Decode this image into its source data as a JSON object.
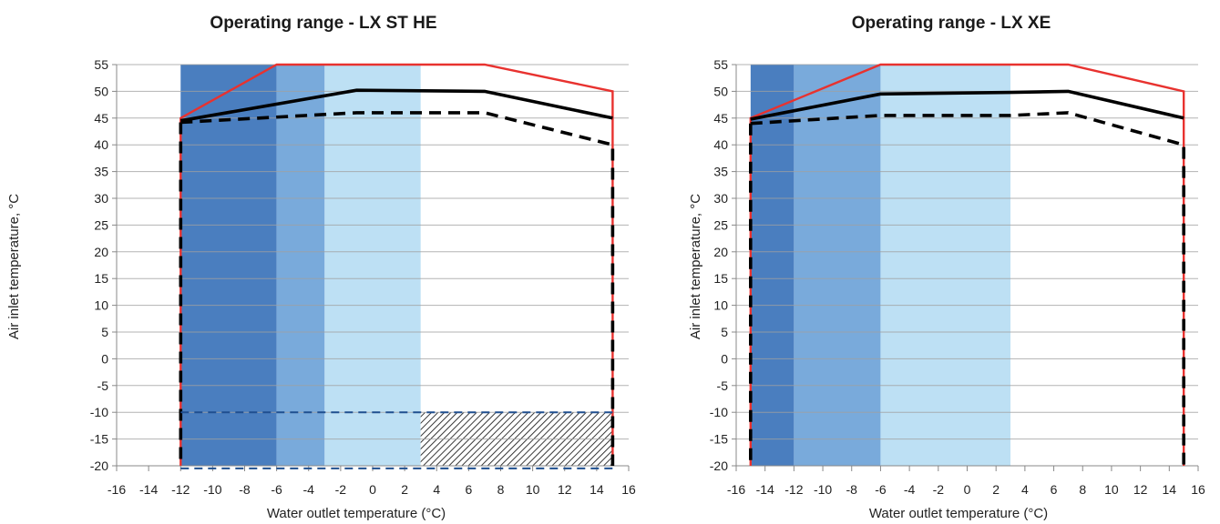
{
  "chart_data": [
    {
      "type": "line",
      "title": "Operating range - LX ST HE",
      "xlabel": "Water outlet temperature (°C)",
      "ylabel": "Air inlet temperature, °C",
      "xlim": [
        -16,
        16
      ],
      "ylim": [
        -20,
        55
      ],
      "x_ticks": [
        -16,
        -14,
        -12,
        -10,
        -8,
        -6,
        -4,
        -2,
        0,
        2,
        4,
        6,
        8,
        10,
        12,
        14,
        16
      ],
      "y_ticks": [
        -20,
        -15,
        -10,
        -5,
        0,
        5,
        10,
        15,
        20,
        25,
        30,
        35,
        40,
        45,
        50,
        55
      ],
      "grid": "horizontal",
      "regions": [
        {
          "x": [
            -12,
            -6
          ],
          "y": [
            -20,
            55
          ],
          "color": "#4a7ebf"
        },
        {
          "x": [
            -6,
            -3
          ],
          "y": [
            -20,
            55
          ],
          "color": "#79aadb"
        },
        {
          "x": [
            -3,
            3
          ],
          "y": [
            -20,
            55
          ],
          "color": "#bde0f4"
        }
      ],
      "hatched_region": {
        "x": [
          3,
          15
        ],
        "y": [
          -20,
          -10
        ]
      },
      "series": [
        {
          "style": "red-solid",
          "x": [
            -12,
            -12,
            -6,
            7,
            15,
            15
          ],
          "y": [
            -20,
            45,
            55,
            55,
            50,
            -20
          ]
        },
        {
          "style": "black-solid",
          "x": [
            -12,
            -1,
            7,
            15
          ],
          "y": [
            44.5,
            50.2,
            50,
            45
          ]
        },
        {
          "style": "black-dashed",
          "x": [
            -12,
            -1,
            7,
            15,
            15
          ],
          "y": [
            44.2,
            46,
            46,
            40,
            -20
          ]
        },
        {
          "style": "black-dashed",
          "x": [
            -12,
            -12
          ],
          "y": [
            44.2,
            -20
          ]
        },
        {
          "style": "blue-dashed",
          "x": [
            -12,
            15
          ],
          "y": [
            -10,
            -10
          ]
        },
        {
          "style": "blue-dashed",
          "x": [
            -12,
            15
          ],
          "y": [
            -20.5,
            -20.5
          ]
        }
      ]
    },
    {
      "type": "line",
      "title": "Operating range - LX XE",
      "xlabel": "Water outlet temperature (°C)",
      "ylabel": "Air inlet temperature, °C",
      "xlim": [
        -16,
        16
      ],
      "ylim": [
        -20,
        55
      ],
      "x_ticks": [
        -16,
        -14,
        -12,
        -10,
        -8,
        -6,
        -4,
        -2,
        0,
        2,
        4,
        6,
        8,
        10,
        12,
        14,
        16
      ],
      "y_ticks": [
        -20,
        -15,
        -10,
        -5,
        0,
        5,
        10,
        15,
        20,
        25,
        30,
        35,
        40,
        45,
        50,
        55
      ],
      "grid": "horizontal",
      "regions": [
        {
          "x": [
            -15,
            -12
          ],
          "y": [
            -20,
            55
          ],
          "color": "#4a7ebf"
        },
        {
          "x": [
            -12,
            -6
          ],
          "y": [
            -20,
            55
          ],
          "color": "#79aadb"
        },
        {
          "x": [
            -6,
            3
          ],
          "y": [
            -20,
            55
          ],
          "color": "#bde0f4"
        }
      ],
      "series": [
        {
          "style": "red-solid",
          "x": [
            -15,
            -15,
            -6,
            7,
            15,
            15
          ],
          "y": [
            -20,
            45,
            55,
            55,
            50,
            -20
          ]
        },
        {
          "style": "black-solid",
          "x": [
            -15,
            -6,
            3,
            7,
            15
          ],
          "y": [
            44.8,
            49.5,
            49.8,
            50,
            45
          ]
        },
        {
          "style": "black-dashed",
          "x": [
            -15,
            -6,
            3,
            7,
            15,
            15
          ],
          "y": [
            44,
            45.5,
            45.5,
            46,
            40,
            -20
          ]
        },
        {
          "style": "black-dashed",
          "x": [
            -15,
            -15
          ],
          "y": [
            44,
            -20
          ]
        }
      ]
    }
  ]
}
